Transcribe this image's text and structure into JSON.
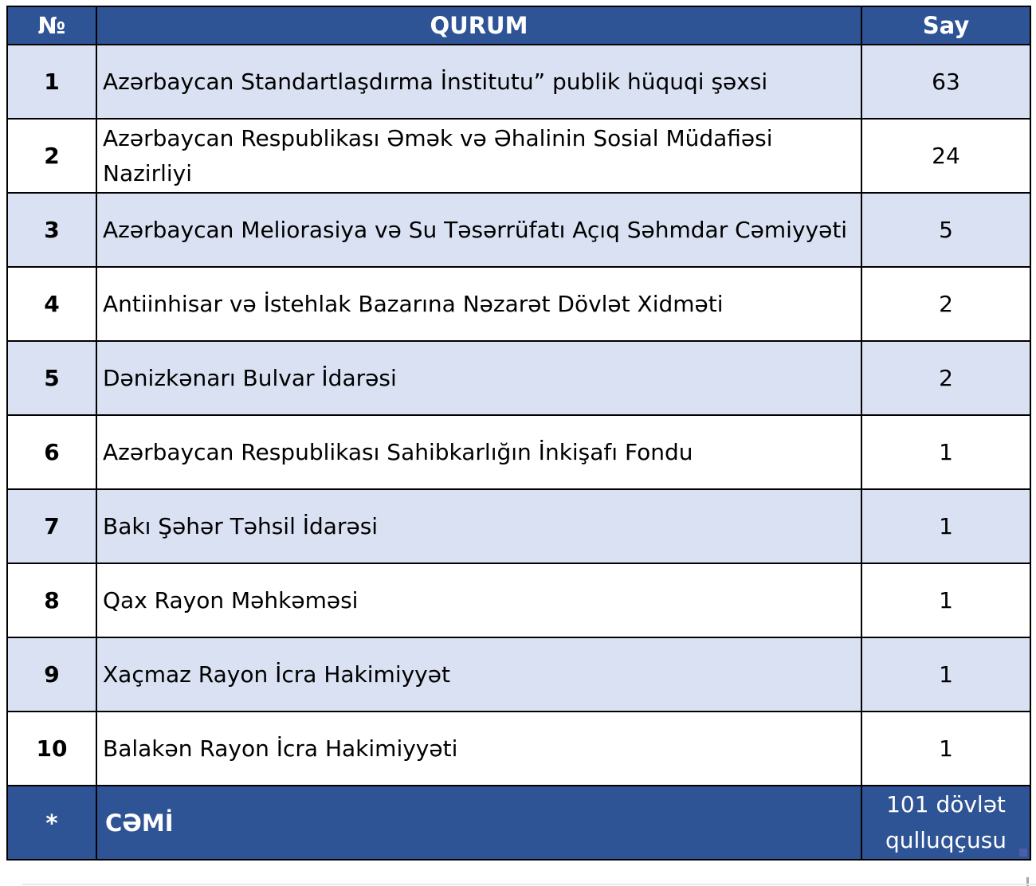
{
  "table": {
    "headers": {
      "no": "№",
      "qurum": "QURUM",
      "say": "Say"
    },
    "rows": [
      {
        "no": "1",
        "qurum": "Azərbaycan Standartlaşdırma İnstitutu” publik hüquqi şəxsi",
        "say": "63"
      },
      {
        "no": "2",
        "qurum": "Azərbaycan Respublikası Əmək və Əhalinin Sosial Müdafiəsi Nazirliyi",
        "say": "24"
      },
      {
        "no": "3",
        "qurum": "Azərbaycan Meliorasiya və Su Təsərrüfatı Açıq Səhmdar Cəmiyyəti",
        "say": "5"
      },
      {
        "no": "4",
        "qurum": "Antiinhisar və İstehlak Bazarına Nəzarət Dövlət Xidməti",
        "say": "2"
      },
      {
        "no": "5",
        "qurum": "Dənizkənarı Bulvar İdarəsi",
        "say": "2"
      },
      {
        "no": "6",
        "qurum": "Azərbaycan Respublikası Sahibkarlığın İnkişafı Fondu",
        "say": "1"
      },
      {
        "no": "7",
        "qurum": "Bakı Şəhər Təhsil İdarəsi",
        "say": "1"
      },
      {
        "no": "8",
        "qurum": "Qax Rayon Məhkəməsi",
        "say": "1"
      },
      {
        "no": "9",
        "qurum": "Xaçmaz Rayon İcra Hakimiyyət",
        "say": "1"
      },
      {
        "no": "10",
        "qurum": "Balakən Rayon İcra Hakimiyyəti",
        "say": "1"
      }
    ],
    "footer": {
      "no": "*",
      "qurum": "CƏMİ",
      "say": "101 dövlət qulluqçusu"
    },
    "colors": {
      "header_bg": "#2F5496",
      "header_text": "#FFFFFF",
      "alt_row_bg": "#D9E1F2",
      "row_bg": "#FFFFFF",
      "border": "#000000",
      "body_text": "#000000"
    }
  }
}
